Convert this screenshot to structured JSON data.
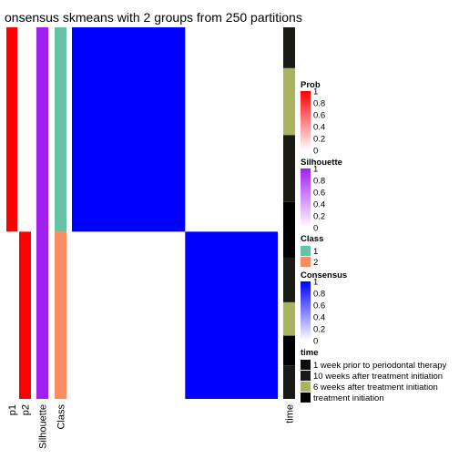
{
  "chart_data": {
    "type": "heatmap",
    "title": "onsensus skmeans with 2 groups from 250 partitions",
    "n_samples": 100,
    "columns": [
      {
        "key": "p1",
        "label": "p1",
        "kind": "prob",
        "values": [
          {
            "from": 0,
            "to": 55,
            "value": 1
          },
          {
            "from": 55,
            "to": 100,
            "value": 0
          }
        ]
      },
      {
        "key": "p2",
        "label": "p2",
        "kind": "prob",
        "values": [
          {
            "from": 0,
            "to": 55,
            "value": 0
          },
          {
            "from": 55,
            "to": 100,
            "value": 1
          }
        ]
      },
      {
        "key": "silhouette",
        "label": "Silhouette",
        "kind": "silhouette",
        "values": [
          {
            "from": 0,
            "to": 100,
            "value": 1
          }
        ]
      },
      {
        "key": "class",
        "label": "Class",
        "kind": "class",
        "values": [
          {
            "from": 0,
            "to": 55,
            "value": "1"
          },
          {
            "from": 55,
            "to": 100,
            "value": "2"
          }
        ]
      }
    ],
    "consensus_blocks": [
      {
        "rows": [
          0,
          55
        ],
        "cols": [
          0,
          55
        ],
        "value": 1
      },
      {
        "rows": [
          55,
          100
        ],
        "cols": [
          55,
          100
        ],
        "value": 1
      }
    ],
    "time_column": {
      "label": "time",
      "segments": [
        {
          "from": 0,
          "to": 11,
          "level": "10 weeks after treatment initiation"
        },
        {
          "from": 11,
          "to": 29,
          "level": "6 weeks after treatment initiation"
        },
        {
          "from": 29,
          "to": 47,
          "level": "10 weeks after treatment initiation"
        },
        {
          "from": 47,
          "to": 62,
          "level": "treatment initiation"
        },
        {
          "from": 62,
          "to": 74,
          "level": "10 weeks after treatment initiation"
        },
        {
          "from": 74,
          "to": 83,
          "level": "6 weeks after treatment initiation"
        },
        {
          "from": 83,
          "to": 91,
          "level": "treatment initiation"
        },
        {
          "from": 91,
          "to": 100,
          "level": "10 weeks after treatment initiation"
        }
      ]
    },
    "legends": {
      "prob": {
        "title": "Prob",
        "ticks": [
          "1",
          "0.8",
          "0.6",
          "0.4",
          "0.2",
          "0"
        ],
        "low": "#ffffff",
        "high": "#ff0000"
      },
      "silhouette": {
        "title": "Silhouette",
        "ticks": [
          "1",
          "0.8",
          "0.6",
          "0.4",
          "0.2",
          "0"
        ],
        "low": "#ffffff",
        "high": "#a020f0"
      },
      "class": {
        "title": "Class",
        "items": [
          {
            "label": "1",
            "color": "#66c2a5"
          },
          {
            "label": "2",
            "color": "#fc8d62"
          }
        ]
      },
      "consensus": {
        "title": "Consensus",
        "ticks": [
          "1",
          "0.8",
          "0.6",
          "0.4",
          "0.2",
          "0"
        ],
        "low": "#ffffff",
        "high": "#0000ff"
      },
      "time": {
        "title": "time",
        "items": [
          {
            "label": "1 week prior to periodontal therapy",
            "color": "#0d0d0d"
          },
          {
            "label": "10 weeks after treatment initiation",
            "color": "#1c1a15"
          },
          {
            "label": "6 weeks after treatment initiation",
            "color": "#aab45e"
          },
          {
            "label": "treatment initiation",
            "color": "#000000"
          }
        ]
      }
    },
    "colors": {
      "prob": "#ff0000",
      "silhouette": "#a020f0",
      "consensus": "#0000ff"
    }
  }
}
